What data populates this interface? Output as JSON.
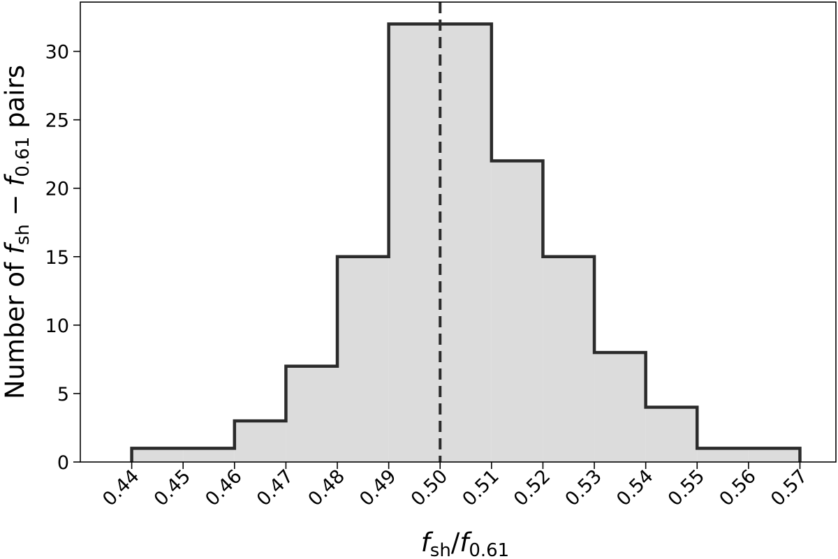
{
  "chart_data": {
    "type": "bar",
    "subtype": "step-histogram",
    "bin_edges": [
      0.44,
      0.45,
      0.46,
      0.47,
      0.48,
      0.49,
      0.5,
      0.51,
      0.52,
      0.53,
      0.54,
      0.55,
      0.56,
      0.57
    ],
    "values": [
      1,
      1,
      3,
      7,
      15,
      32,
      32,
      22,
      15,
      8,
      4,
      1,
      1
    ],
    "xlim": [
      0.43,
      0.577
    ],
    "ylim": [
      0,
      33.6
    ],
    "x_ticks": [
      "0.44",
      "0.45",
      "0.46",
      "0.47",
      "0.48",
      "0.49",
      "0.50",
      "0.51",
      "0.52",
      "0.53",
      "0.54",
      "0.55",
      "0.56",
      "0.57"
    ],
    "x_tick_values": [
      0.44,
      0.45,
      0.46,
      0.47,
      0.48,
      0.49,
      0.5,
      0.51,
      0.52,
      0.53,
      0.54,
      0.55,
      0.56,
      0.57
    ],
    "y_ticks": [
      "0",
      "5",
      "10",
      "15",
      "20",
      "25",
      "30"
    ],
    "y_tick_values": [
      0,
      5,
      10,
      15,
      20,
      25,
      30
    ],
    "xlabel": {
      "f": "f",
      "sub1": "sh",
      "slash": "/",
      "f2": "f",
      "sub2": "0.61"
    },
    "ylabel": {
      "pre": "Number of ",
      "f": "f",
      "sub1": "sh",
      "dash": " − ",
      "f2": "f",
      "sub2": "0.61",
      "post": " pairs"
    },
    "reference_line": {
      "x": 0.5,
      "style": "dashed"
    },
    "grid": false,
    "legend": "none",
    "colors": {
      "fill": "#dcdcdc",
      "edge": "#2b2b2b",
      "axis": "#000000"
    }
  }
}
